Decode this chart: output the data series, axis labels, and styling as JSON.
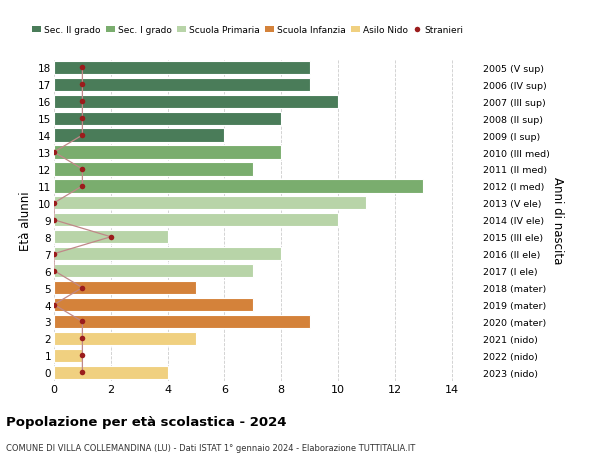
{
  "ages": [
    18,
    17,
    16,
    15,
    14,
    13,
    12,
    11,
    10,
    9,
    8,
    7,
    6,
    5,
    4,
    3,
    2,
    1,
    0
  ],
  "right_labels": [
    "2005 (V sup)",
    "2006 (IV sup)",
    "2007 (III sup)",
    "2008 (II sup)",
    "2009 (I sup)",
    "2010 (III med)",
    "2011 (II med)",
    "2012 (I med)",
    "2013 (V ele)",
    "2014 (IV ele)",
    "2015 (III ele)",
    "2016 (II ele)",
    "2017 (I ele)",
    "2018 (mater)",
    "2019 (mater)",
    "2020 (mater)",
    "2021 (nido)",
    "2022 (nido)",
    "2023 (nido)"
  ],
  "bar_values": [
    9,
    9,
    10,
    8,
    6,
    8,
    7,
    13,
    11,
    10,
    4,
    8,
    7,
    5,
    7,
    9,
    5,
    1,
    4
  ],
  "bar_colors": [
    "#4a7c59",
    "#4a7c59",
    "#4a7c59",
    "#4a7c59",
    "#4a7c59",
    "#7aad6e",
    "#7aad6e",
    "#7aad6e",
    "#b8d4a8",
    "#b8d4a8",
    "#b8d4a8",
    "#b8d4a8",
    "#b8d4a8",
    "#d4823a",
    "#d4823a",
    "#d4823a",
    "#f0d080",
    "#f0d080",
    "#f0d080"
  ],
  "stranieri_values": [
    1,
    1,
    1,
    1,
    1,
    0,
    1,
    1,
    0,
    0,
    2,
    0,
    0,
    1,
    0,
    1,
    1,
    1,
    1
  ],
  "legend_labels": [
    "Sec. II grado",
    "Sec. I grado",
    "Scuola Primaria",
    "Scuola Infanzia",
    "Asilo Nido",
    "Stranieri"
  ],
  "legend_colors": [
    "#4a7c59",
    "#7aad6e",
    "#b8d4a8",
    "#d4823a",
    "#f0d080",
    "#b22222"
  ],
  "ylabel": "Età alunni",
  "ylabel_right": "Anni di nascita",
  "title": "Popolazione per età scolastica - 2024",
  "subtitle": "COMUNE DI VILLA COLLEMANDINA (LU) - Dati ISTAT 1° gennaio 2024 - Elaborazione TUTTITALIA.IT",
  "xlim": [
    0,
    15
  ],
  "background_color": "#ffffff",
  "grid_color": "#cccccc",
  "stranieri_color": "#9b1c1c",
  "stranieri_line_color": "#c08888"
}
